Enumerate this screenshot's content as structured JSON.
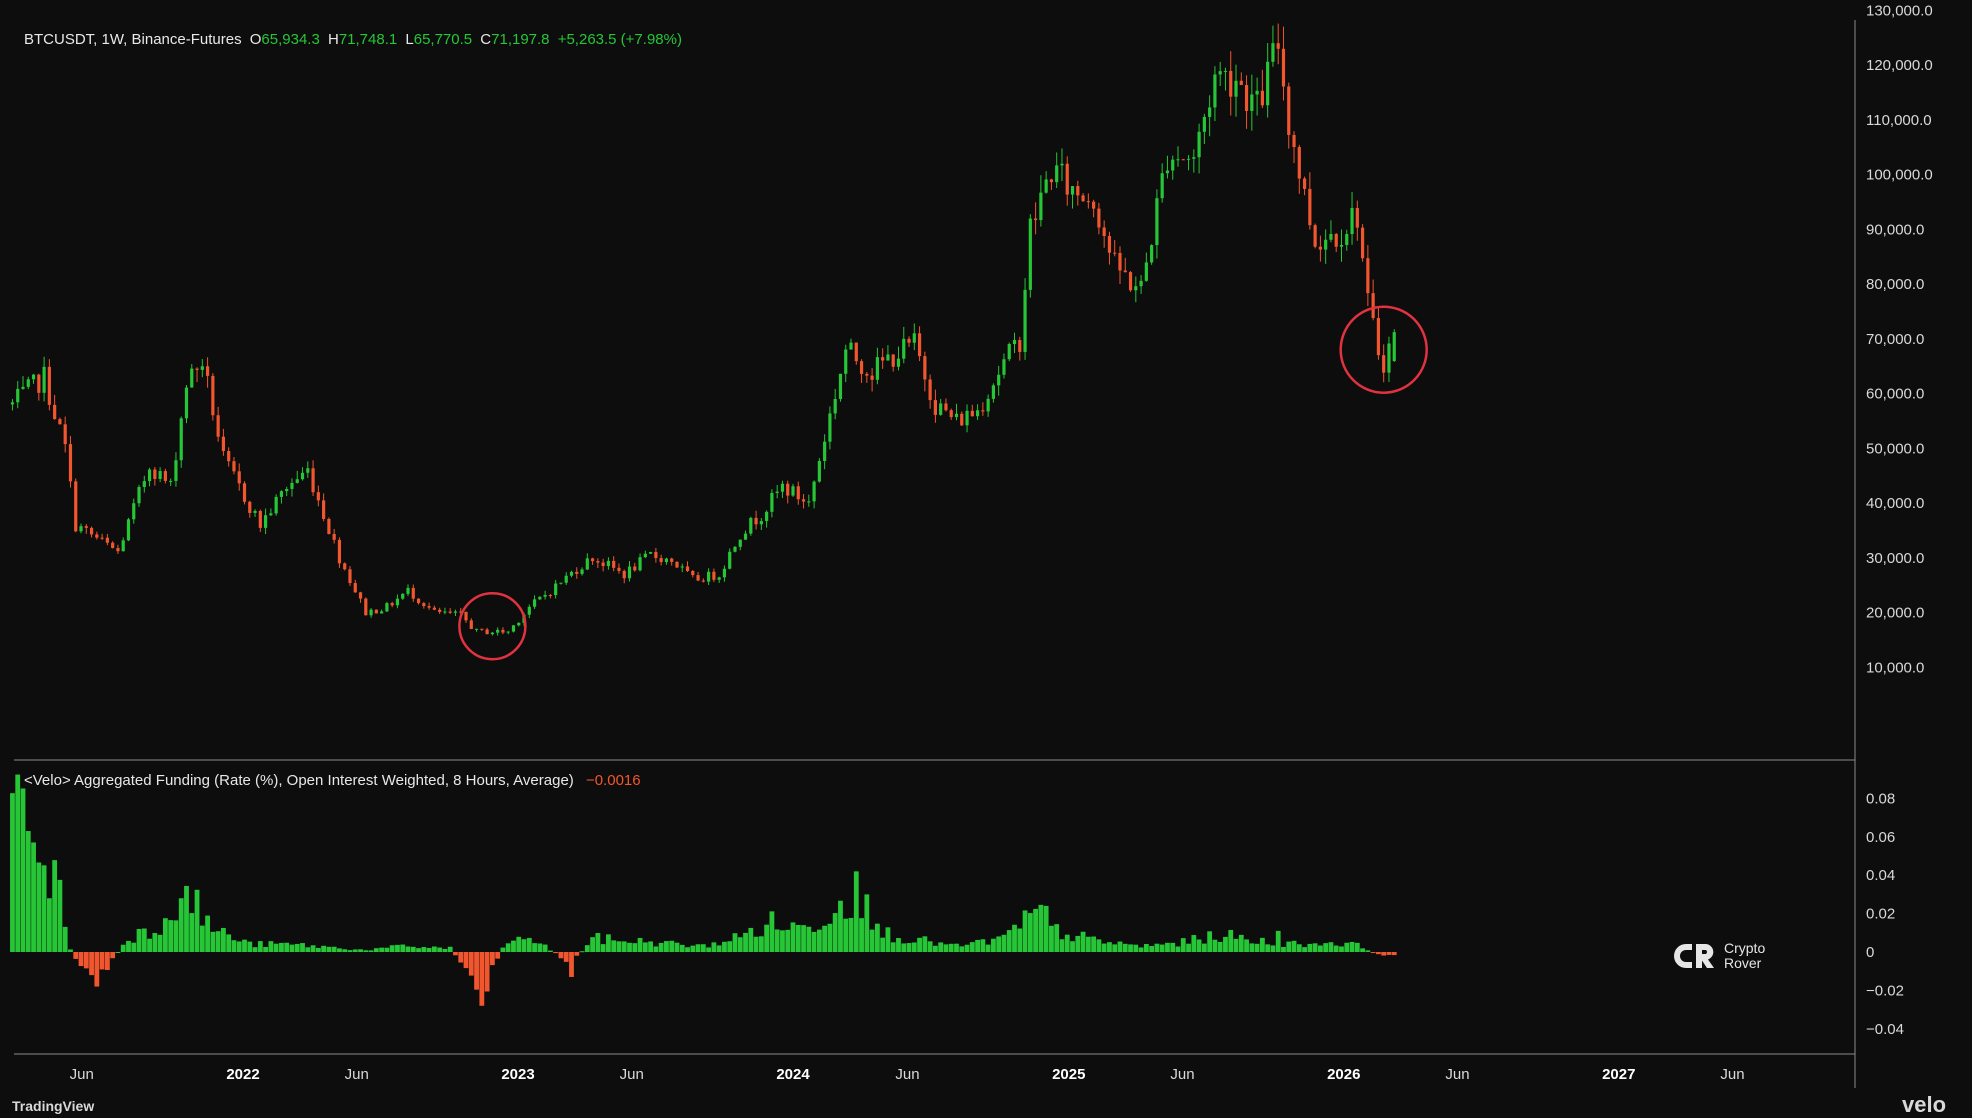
{
  "header": {
    "symbol": "BTCUSDT, 1W, Binance-Futures",
    "open_label": "O",
    "open": "65,934.3",
    "high_label": "H",
    "high": "71,748.1",
    "low_label": "L",
    "low": "65,770.5",
    "close_label": "C",
    "close": "71,197.8",
    "change": "+5,263.5 (+7.98%)"
  },
  "indicator": {
    "title": "<Velo> Aggregated Funding (Rate (%), Open Interest Weighted, 8 Hours, Average)",
    "value": "−0.0016"
  },
  "logo": {
    "line1": "Crypto",
    "line2": "Rover"
  },
  "branding": {
    "left": "TradingView",
    "right": "velo"
  },
  "colors": {
    "up": "#26c637",
    "down": "#f2562f",
    "background": "#0d0d0d",
    "circle": "#e0333f"
  },
  "chart_data": [
    {
      "type": "candlestick",
      "title": "BTCUSDT, 1W, Binance-Futures",
      "y_scale": "linear",
      "ylim": [
        0,
        135000
      ],
      "y_ticks": [
        "130,000.0",
        "120,000.0",
        "110,000.0",
        "100,000.0",
        "90,000.0",
        "80,000.0",
        "70,000.0",
        "60,000.0",
        "50,000.0",
        "40,000.0",
        "30,000.0",
        "20,000.0",
        "10,000.0"
      ],
      "x_ticks": [
        {
          "label": "Jun",
          "bold": false,
          "date": "2021-06-01"
        },
        {
          "label": "2022",
          "bold": true,
          "date": "2022-01-01"
        },
        {
          "label": "Jun",
          "bold": false,
          "date": "2022-06-01"
        },
        {
          "label": "2023",
          "bold": true,
          "date": "2023-01-01"
        },
        {
          "label": "Jun",
          "bold": false,
          "date": "2023-06-01"
        },
        {
          "label": "2024",
          "bold": true,
          "date": "2024-01-01"
        },
        {
          "label": "Jun",
          "bold": false,
          "date": "2024-06-01"
        },
        {
          "label": "2025",
          "bold": true,
          "date": "2025-01-01"
        },
        {
          "label": "Jun",
          "bold": false,
          "date": "2025-06-01"
        },
        {
          "label": "2026",
          "bold": true,
          "date": "2026-01-01"
        },
        {
          "label": "Jun",
          "bold": false,
          "date": "2026-06-01"
        },
        {
          "label": "2027",
          "bold": true,
          "date": "2027-01-01"
        },
        {
          "label": "Jun",
          "bold": false,
          "date": "2027-06-01"
        }
      ],
      "close_path": [
        [
          "2021-03-01",
          58000
        ],
        [
          "2021-04-12",
          63000
        ],
        [
          "2021-05-10",
          50000
        ],
        [
          "2021-05-24",
          36000
        ],
        [
          "2021-07-19",
          31000
        ],
        [
          "2021-08-30",
          47000
        ],
        [
          "2021-09-27",
          43000
        ],
        [
          "2021-10-18",
          62000
        ],
        [
          "2021-11-08",
          66000
        ],
        [
          "2021-12-06",
          48000
        ],
        [
          "2022-01-24",
          36000
        ],
        [
          "2022-02-28",
          43000
        ],
        [
          "2022-03-28",
          46000
        ],
        [
          "2022-05-09",
          30000
        ],
        [
          "2022-06-13",
          20000
        ],
        [
          "2022-07-11",
          21000
        ],
        [
          "2022-08-08",
          24000
        ],
        [
          "2022-09-12",
          20000
        ],
        [
          "2022-10-17",
          19500
        ],
        [
          "2022-11-07",
          16500
        ],
        [
          "2022-12-19",
          16500
        ],
        [
          "2023-01-16",
          21000
        ],
        [
          "2023-02-13",
          24000
        ],
        [
          "2023-03-20",
          28000
        ],
        [
          "2023-04-10",
          30000
        ],
        [
          "2023-05-22",
          27000
        ],
        [
          "2023-06-26",
          30500
        ],
        [
          "2023-07-24",
          29500
        ],
        [
          "2023-08-21",
          26000
        ],
        [
          "2023-09-25",
          27000
        ],
        [
          "2023-10-23",
          34500
        ],
        [
          "2023-11-20",
          38000
        ],
        [
          "2023-12-18",
          43000
        ],
        [
          "2024-01-22",
          40000
        ],
        [
          "2024-02-12",
          52000
        ],
        [
          "2024-03-11",
          68000
        ],
        [
          "2024-04-15",
          64000
        ],
        [
          "2024-05-13",
          67000
        ],
        [
          "2024-06-10",
          69000
        ],
        [
          "2024-07-08",
          58000
        ],
        [
          "2024-08-05",
          55000
        ],
        [
          "2024-09-02",
          57000
        ],
        [
          "2024-09-30",
          64000
        ],
        [
          "2024-10-28",
          70000
        ],
        [
          "2024-11-11",
          90000
        ],
        [
          "2024-12-09",
          101000
        ],
        [
          "2025-01-06",
          97000
        ],
        [
          "2025-02-03",
          96000
        ],
        [
          "2025-03-03",
          83000
        ],
        [
          "2025-04-07",
          79000
        ],
        [
          "2025-05-12",
          104000
        ],
        [
          "2025-06-16",
          103000
        ],
        [
          "2025-07-14",
          118000
        ],
        [
          "2025-08-11",
          118000
        ],
        [
          "2025-09-08",
          112000
        ],
        [
          "2025-10-06",
          124000
        ],
        [
          "2025-10-20",
          110000
        ],
        [
          "2025-11-10",
          96000
        ],
        [
          "2025-11-24",
          88000
        ],
        [
          "2025-12-29",
          90000
        ],
        [
          "2026-01-19",
          93000
        ],
        [
          "2026-02-02",
          76000
        ],
        [
          "2026-02-16",
          68000
        ],
        [
          "2026-02-23",
          66000
        ],
        [
          "2026-03-09",
          71197.8
        ]
      ],
      "last_candle": {
        "open": 65934.3,
        "high": 71748.1,
        "low": 65770.5,
        "close": 71197.8
      },
      "annotations": [
        {
          "shape": "circle",
          "date": "2022-11-28",
          "price": 17500
        },
        {
          "shape": "circle",
          "date": "2026-02-23",
          "price": 68000
        }
      ]
    },
    {
      "type": "bar",
      "title": "<Velo> Aggregated Funding (Rate (%), Open Interest Weighted, 8 Hours, Average)",
      "ylim": [
        -0.05,
        0.09
      ],
      "y_ticks": [
        "0.08",
        "0.06",
        "0.04",
        "0.02",
        "0",
        "−0.02",
        "−0.04"
      ],
      "y_tick_values": [
        0.08,
        0.06,
        0.04,
        0.02,
        0,
        -0.02,
        -0.04
      ],
      "profile": [
        [
          "2021-03-01",
          0.07
        ],
        [
          "2021-04-05",
          0.075
        ],
        [
          "2021-04-26",
          0.04
        ],
        [
          "2021-05-17",
          0.002
        ],
        [
          "2021-06-07",
          -0.012
        ],
        [
          "2021-07-05",
          -0.008
        ],
        [
          "2021-08-02",
          0.008
        ],
        [
          "2021-09-06",
          0.012
        ],
        [
          "2021-10-04",
          0.028
        ],
        [
          "2021-10-25",
          0.027
        ],
        [
          "2021-11-22",
          0.012
        ],
        [
          "2022-01-10",
          0.004
        ],
        [
          "2022-03-07",
          0.004
        ],
        [
          "2022-06-13",
          0.001
        ],
        [
          "2022-08-01",
          0.003
        ],
        [
          "2022-10-03",
          0.002
        ],
        [
          "2022-11-14",
          -0.02
        ],
        [
          "2022-12-12",
          0.003
        ],
        [
          "2023-01-16",
          0.008
        ],
        [
          "2023-03-13",
          -0.006
        ],
        [
          "2023-04-10",
          0.007
        ],
        [
          "2023-07-03",
          0.005
        ],
        [
          "2023-09-04",
          0.003
        ],
        [
          "2023-10-23",
          0.008
        ],
        [
          "2023-12-04",
          0.015
        ],
        [
          "2024-01-15",
          0.012
        ],
        [
          "2024-03-04",
          0.025
        ],
        [
          "2024-03-25",
          0.035
        ],
        [
          "2024-04-22",
          0.011
        ],
        [
          "2024-06-03",
          0.007
        ],
        [
          "2024-08-05",
          0.003
        ],
        [
          "2024-10-07",
          0.007
        ],
        [
          "2024-11-18",
          0.02
        ],
        [
          "2024-12-16",
          0.011
        ],
        [
          "2025-02-03",
          0.006
        ],
        [
          "2025-04-07",
          0.003
        ],
        [
          "2025-06-02",
          0.005
        ],
        [
          "2025-07-21",
          0.009
        ],
        [
          "2025-09-01",
          0.006
        ],
        [
          "2025-11-03",
          0.004
        ],
        [
          "2025-12-22",
          0.005
        ],
        [
          "2026-01-26",
          0.003
        ],
        [
          "2026-02-09",
          -0.001
        ],
        [
          "2026-03-09",
          -0.0016
        ]
      ],
      "spikes": [
        [
          "2021-03-22",
          0.063
        ],
        [
          "2021-04-19",
          0.028
        ],
        [
          "2021-06-21",
          -0.018
        ],
        [
          "2021-10-11",
          0.028
        ],
        [
          "2022-11-14",
          -0.028
        ],
        [
          "2023-03-13",
          -0.013
        ],
        [
          "2024-03-25",
          0.042
        ],
        [
          "2024-04-08",
          0.03
        ],
        [
          "2024-12-02",
          0.024
        ],
        [
          "2025-10-06",
          0.011
        ]
      ]
    }
  ]
}
